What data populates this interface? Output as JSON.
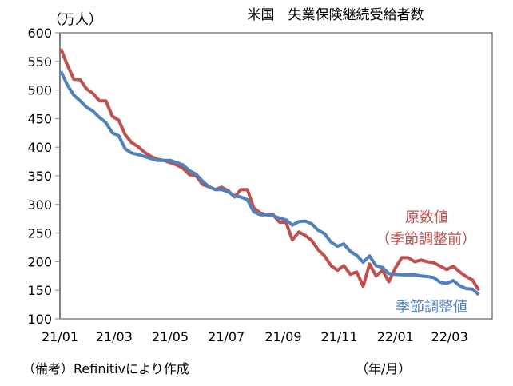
{
  "chart_data": {
    "type": "line",
    "title": "米国　失業保険継続受給者数",
    "ylabel": "（万人）",
    "xlabel": "（年/月）",
    "note": "（備考）Refinitivにより作成",
    "ylim": [
      100,
      600
    ],
    "yticks": [
      100,
      150,
      200,
      250,
      300,
      350,
      400,
      450,
      500,
      550,
      600
    ],
    "xticks": [
      {
        "date": "2021-01-01",
        "label": "21/01"
      },
      {
        "date": "2021-03-01",
        "label": "21/03"
      },
      {
        "date": "2021-05-01",
        "label": "21/05"
      },
      {
        "date": "2021-07-01",
        "label": "21/07"
      },
      {
        "date": "2021-09-01",
        "label": "21/09"
      },
      {
        "date": "2021-11-01",
        "label": "21/11"
      },
      {
        "date": "2022-01-01",
        "label": "22/01"
      },
      {
        "date": "2022-03-01",
        "label": "22/03"
      }
    ],
    "grid": false,
    "x": [
      "2021-01-02",
      "2021-01-09",
      "2021-01-16",
      "2021-01-23",
      "2021-01-30",
      "2021-02-06",
      "2021-02-13",
      "2021-02-20",
      "2021-02-27",
      "2021-03-06",
      "2021-03-13",
      "2021-03-20",
      "2021-03-27",
      "2021-04-03",
      "2021-04-10",
      "2021-04-17",
      "2021-04-24",
      "2021-05-01",
      "2021-05-08",
      "2021-05-15",
      "2021-05-22",
      "2021-05-29",
      "2021-06-05",
      "2021-06-12",
      "2021-06-19",
      "2021-06-26",
      "2021-07-03",
      "2021-07-10",
      "2021-07-17",
      "2021-07-24",
      "2021-07-31",
      "2021-08-07",
      "2021-08-14",
      "2021-08-21",
      "2021-08-28",
      "2021-09-04",
      "2021-09-11",
      "2021-09-18",
      "2021-09-25",
      "2021-10-02",
      "2021-10-09",
      "2021-10-16",
      "2021-10-23",
      "2021-10-30",
      "2021-11-06",
      "2021-11-13",
      "2021-11-20",
      "2021-11-27",
      "2021-12-04",
      "2021-12-11",
      "2021-12-18",
      "2021-12-25",
      "2022-01-01",
      "2022-01-08",
      "2022-01-15",
      "2022-01-22",
      "2022-01-29",
      "2022-02-05",
      "2022-02-12",
      "2022-02-19",
      "2022-02-26",
      "2022-03-05",
      "2022-03-12",
      "2022-03-19",
      "2022-03-26",
      "2022-04-02"
    ],
    "series": [
      {
        "name": "原数値",
        "name_sub": "（季節調整前）",
        "color": "#c0504d",
        "values": [
          572,
          544,
          519,
          518,
          502,
          494,
          481,
          481,
          454,
          447,
          422,
          408,
          401,
          391,
          384,
          379,
          377,
          373,
          369,
          363,
          352,
          351,
          335,
          331,
          326,
          330,
          324,
          313,
          326,
          326,
          294,
          285,
          282,
          282,
          269,
          269,
          238,
          252,
          246,
          237,
          221,
          210,
          193,
          185,
          193,
          178,
          182,
          157,
          196,
          175,
          185,
          165,
          189,
          207,
          207,
          200,
          203,
          200,
          198,
          192,
          186,
          192,
          182,
          174,
          168,
          150
        ]
      },
      {
        "name": "季節調整値",
        "color": "#4f81bd",
        "values": [
          533,
          509,
          491,
          481,
          470,
          463,
          452,
          443,
          425,
          420,
          397,
          390,
          387,
          384,
          380,
          377,
          377,
          377,
          373,
          369,
          359,
          353,
          341,
          331,
          326,
          326,
          322,
          315,
          313,
          308,
          287,
          282,
          282,
          280,
          276,
          273,
          264,
          270,
          271,
          266,
          255,
          249,
          234,
          227,
          231,
          218,
          211,
          199,
          210,
          193,
          190,
          179,
          178,
          177,
          177,
          177,
          175,
          174,
          172,
          164,
          162,
          167,
          158,
          153,
          152,
          142
        ]
      }
    ]
  }
}
